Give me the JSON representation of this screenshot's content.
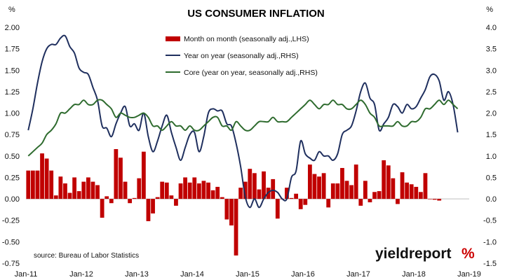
{
  "chart_data": {
    "type": "bar",
    "title": "US CONSUMER INFLATION",
    "left_unit": "%",
    "right_unit": "%",
    "source": "source: Bureau of Labor Statistics",
    "brand": {
      "text": "yieldreport",
      "symbol": "%",
      "color": "#cc0000"
    },
    "x_tick_labels": [
      "Jan-11",
      "Jan-12",
      "Jan-13",
      "Jan-14",
      "Jan-15",
      "Jan-16",
      "Jan-17",
      "Jan-18",
      "Jan-19"
    ],
    "x_range": [
      "Jan-11",
      "Jan-19"
    ],
    "y_left_ticks": [
      "2.00",
      "1.75",
      "1.50",
      "1.25",
      "1.00",
      "0.75",
      "0.50",
      "0.25",
      "0.00",
      "-0.25",
      "-0.50",
      "-0.75"
    ],
    "y_right_ticks": [
      "4.0",
      "3.5",
      "3.0",
      "2.5",
      "2.0",
      "1.5",
      "1.0",
      "0.5",
      "0.0",
      "-0.5",
      "-1.0",
      "-1.5"
    ],
    "y_left_range": [
      -0.75,
      2.0
    ],
    "y_right_range": [
      -1.5,
      4.0
    ],
    "grid": false,
    "legend_position": "top-center",
    "series": [
      {
        "name": "Month on month (seasonally adj.,LHS)",
        "type": "bar",
        "axis": "left",
        "color": "#c00000",
        "values": [
          0.33,
          0.33,
          0.33,
          0.53,
          0.47,
          0.33,
          0.04,
          0.26,
          0.18,
          0.07,
          0.25,
          0.09,
          0.2,
          0.25,
          0.2,
          0.16,
          -0.22,
          0.03,
          -0.05,
          0.58,
          0.48,
          0.2,
          -0.05,
          0.01,
          0.24,
          0.55,
          -0.26,
          -0.17,
          0.02,
          0.2,
          0.19,
          0.04,
          -0.08,
          0.18,
          0.25,
          0.19,
          0.25,
          0.18,
          0.21,
          0.19,
          0.1,
          0.14,
          0.02,
          -0.24,
          -0.31,
          -0.66,
          0.13,
          0.2,
          0.35,
          0.3,
          0.11,
          0.32,
          0.13,
          0.23,
          -0.23,
          0.0,
          0.13,
          0.01,
          0.06,
          -0.12,
          -0.07,
          0.4,
          0.29,
          0.26,
          0.3,
          -0.1,
          0.18,
          0.18,
          0.36,
          0.21,
          0.16,
          0.4,
          -0.08,
          0.21,
          -0.04,
          0.08,
          0.09,
          0.45,
          0.39,
          0.24,
          -0.06,
          0.31,
          0.19,
          0.17,
          0.14,
          0.08,
          0.3,
          0.0,
          -0.01,
          -0.02
        ],
        "monthly_start": "Jan-11"
      },
      {
        "name": "Year on year (seasonally adj.,RHS)",
        "type": "line",
        "axis": "right",
        "color": "#1f2f5e",
        "values": [
          1.6,
          2.1,
          2.7,
          3.2,
          3.5,
          3.6,
          3.6,
          3.75,
          3.8,
          3.55,
          3.4,
          3.05,
          2.95,
          2.9,
          2.6,
          2.3,
          1.7,
          1.65,
          1.45,
          1.75,
          2.0,
          2.15,
          1.7,
          1.75,
          1.6,
          2.0,
          1.45,
          1.1,
          1.35,
          1.7,
          1.95,
          1.55,
          1.2,
          0.9,
          1.2,
          1.5,
          1.55,
          1.1,
          1.45,
          2.0,
          2.1,
          2.05,
          2.05,
          1.75,
          1.7,
          1.3,
          0.75,
          0.05,
          -0.2,
          0.0,
          -0.2,
          0.0,
          0.15,
          0.2,
          0.15,
          0.0,
          0.0,
          0.5,
          0.65,
          1.35,
          1.05,
          0.95,
          0.9,
          1.1,
          1.0,
          1.0,
          0.9,
          1.05,
          1.5,
          1.6,
          1.7,
          2.05,
          2.5,
          2.7,
          2.35,
          2.2,
          1.6,
          1.75,
          1.9,
          2.2,
          2.15,
          2.0,
          2.2,
          2.1,
          2.15,
          2.35,
          2.55,
          2.85,
          2.9,
          2.75,
          2.3,
          2.5,
          2.2,
          1.55
        ],
        "monthly_start": "Jan-11"
      },
      {
        "name": "Core (year on year, seasonally adj.,RHS)",
        "type": "line",
        "axis": "right",
        "color": "#2e6b2e",
        "values": [
          1.0,
          1.1,
          1.2,
          1.3,
          1.5,
          1.6,
          1.75,
          2.0,
          2.0,
          2.1,
          2.2,
          2.2,
          2.3,
          2.2,
          2.2,
          2.3,
          2.3,
          2.2,
          2.1,
          1.9,
          2.0,
          1.95,
          1.9,
          1.9,
          1.95,
          2.0,
          1.9,
          1.7,
          1.7,
          1.6,
          1.7,
          1.8,
          1.7,
          1.7,
          1.6,
          1.7,
          1.6,
          1.6,
          1.7,
          1.8,
          1.9,
          1.9,
          1.7,
          1.7,
          1.6,
          1.8,
          1.7,
          1.6,
          1.6,
          1.7,
          1.8,
          1.8,
          1.8,
          1.9,
          1.8,
          1.8,
          1.8,
          1.9,
          2.0,
          2.1,
          2.2,
          2.3,
          2.2,
          2.1,
          2.2,
          2.2,
          2.3,
          2.2,
          2.2,
          2.1,
          2.1,
          2.2,
          2.3,
          2.2,
          2.0,
          1.9,
          1.7,
          1.7,
          1.7,
          1.7,
          1.8,
          1.7,
          1.7,
          1.8,
          1.8,
          1.9,
          2.1,
          2.1,
          2.2,
          2.3,
          2.2,
          2.3,
          2.2,
          2.1
        ],
        "monthly_start": "Jan-11"
      }
    ]
  }
}
